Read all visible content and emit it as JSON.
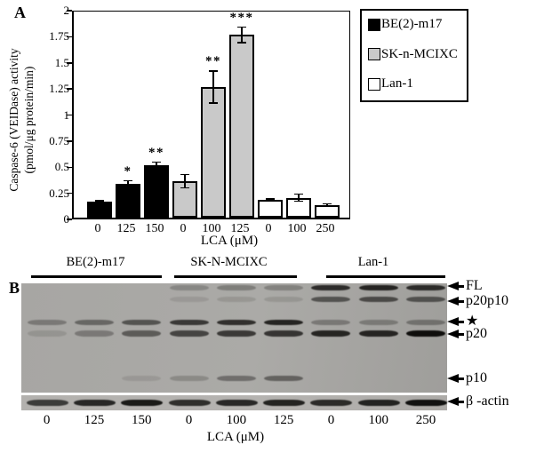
{
  "panel_a": {
    "label": "A"
  },
  "chart_data": {
    "type": "bar",
    "title": "",
    "xlabel": "LCA (μM)",
    "ylabel": "Caspase-6 (VEIDase) activity (pmol/μg protein/min)",
    "ylabel_lines": [
      "Caspase-6 (VEIDase) activity",
      "(pmol/μg  protein/min)"
    ],
    "ylim": [
      0,
      2
    ],
    "ytick_labels": [
      "2",
      "1.75",
      "1.5",
      "1.25",
      "1",
      "0.75",
      "0.5",
      "0.25",
      "0"
    ],
    "categories": [
      "0",
      "125",
      "150",
      "0",
      "100",
      "125",
      "0",
      "100",
      "250"
    ],
    "grid": "off",
    "legend_position": "top-right",
    "series": [
      {
        "name": "BE(2)-m17",
        "fill": "#000000",
        "x": [
          "0",
          "125",
          "150"
        ],
        "values": [
          0.15,
          0.32,
          0.5
        ],
        "errors": [
          0.02,
          0.04,
          0.04
        ],
        "sig": [
          "",
          "*",
          "**"
        ]
      },
      {
        "name": "SK-n-MCIXC",
        "fill": "#c9c9c9",
        "x": [
          "0",
          "100",
          "125"
        ],
        "values": [
          0.35,
          1.25,
          1.75
        ],
        "errors": [
          0.07,
          0.16,
          0.08
        ],
        "sig": [
          "",
          "**",
          "***"
        ]
      },
      {
        "name": "Lan-1",
        "fill": "#ffffff",
        "x": [
          "0",
          "100",
          "250"
        ],
        "values": [
          0.17,
          0.19,
          0.12
        ],
        "errors": [
          0.015,
          0.04,
          0.02
        ],
        "sig": [
          "",
          "",
          ""
        ]
      }
    ],
    "legend": [
      {
        "label": "BE(2)-m17",
        "fill": "#000000"
      },
      {
        "label": "SK-n-MCIXC",
        "fill": "#c9c9c9"
      },
      {
        "label": "Lan-1",
        "fill": "#ffffff"
      }
    ]
  },
  "panel_b": {
    "label": "B",
    "group_labels": [
      "BE(2)-m17",
      "SK-N-MCIXC",
      "Lan-1"
    ],
    "lane_labels": [
      "0",
      "125",
      "150",
      "0",
      "100",
      "125",
      "0",
      "100",
      "250"
    ],
    "xlabel": "LCA (μM)",
    "markers": [
      {
        "label": "FL"
      },
      {
        "label": "p20p10"
      },
      {
        "label": "★"
      },
      {
        "label": "p20"
      },
      {
        "label": "p10"
      },
      {
        "label": "β -actin"
      }
    ],
    "bands_main": [
      {
        "row": "FL",
        "lanes": [
          0,
          0,
          0,
          0.22,
          0.28,
          0.25,
          0.8,
          0.85,
          0.8
        ]
      },
      {
        "row": "p20p10",
        "lanes": [
          0,
          0,
          0,
          0.1,
          0.12,
          0.12,
          0.55,
          0.6,
          0.55
        ]
      },
      {
        "row": "star",
        "lanes": [
          0.3,
          0.42,
          0.55,
          0.72,
          0.78,
          0.85,
          0.3,
          0.28,
          0.33
        ]
      },
      {
        "row": "p20",
        "lanes": [
          0.12,
          0.3,
          0.5,
          0.65,
          0.72,
          0.75,
          0.85,
          0.85,
          1.0
        ]
      },
      {
        "row": "p10",
        "lanes": [
          0,
          0,
          0.1,
          0.2,
          0.38,
          0.45,
          0,
          0,
          0
        ]
      }
    ],
    "bands_actin": [
      0.7,
      0.82,
      0.9,
      0.78,
      0.82,
      0.85,
      0.8,
      0.85,
      0.95
    ]
  }
}
